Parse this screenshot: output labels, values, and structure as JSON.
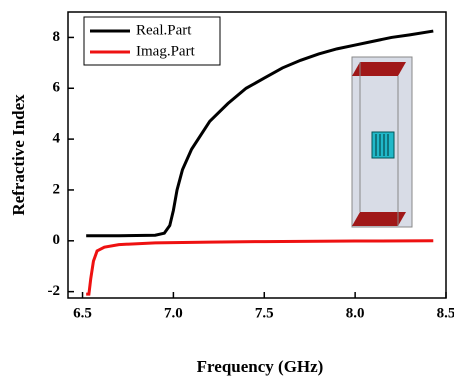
{
  "chart_data": {
    "type": "line",
    "xlabel": "Frequency (GHz)",
    "ylabel": "Refractive Index",
    "xlim": [
      6.42,
      8.5
    ],
    "xticks": [
      {
        "value": 6.5,
        "label": "6.5"
      },
      {
        "value": 7.0,
        "label": "7.0"
      },
      {
        "value": 7.5,
        "label": "7.5"
      },
      {
        "value": 8.0,
        "label": "8.0"
      },
      {
        "value": 8.5,
        "label": "8.5"
      }
    ],
    "ylim": [
      -2.25,
      9.0
    ],
    "yticks": [
      -2,
      0,
      2,
      4,
      6,
      8
    ],
    "legend": "upper left",
    "series": [
      {
        "name": "Real.Part",
        "color": "#000000",
        "x": [
          6.52,
          6.7,
          6.9,
          6.95,
          6.98,
          7.0,
          7.02,
          7.05,
          7.1,
          7.2,
          7.3,
          7.4,
          7.5,
          7.6,
          7.7,
          7.8,
          7.9,
          8.0,
          8.1,
          8.2,
          8.3,
          8.43
        ],
        "values": [
          0.2,
          0.2,
          0.22,
          0.3,
          0.6,
          1.2,
          2.0,
          2.8,
          3.6,
          4.7,
          5.4,
          6.0,
          6.4,
          6.8,
          7.1,
          7.35,
          7.55,
          7.7,
          7.85,
          8.0,
          8.1,
          8.25
        ]
      },
      {
        "name": "Imag.Part",
        "color": "#ee1111",
        "x": [
          6.52,
          6.535,
          6.545,
          6.56,
          6.58,
          6.62,
          6.7,
          6.9,
          7.2,
          7.5,
          8.0,
          8.43
        ],
        "values": [
          -2.1,
          -2.1,
          -1.5,
          -0.8,
          -0.4,
          -0.25,
          -0.15,
          -0.08,
          -0.05,
          -0.03,
          -0.01,
          0
        ]
      }
    ]
  }
}
